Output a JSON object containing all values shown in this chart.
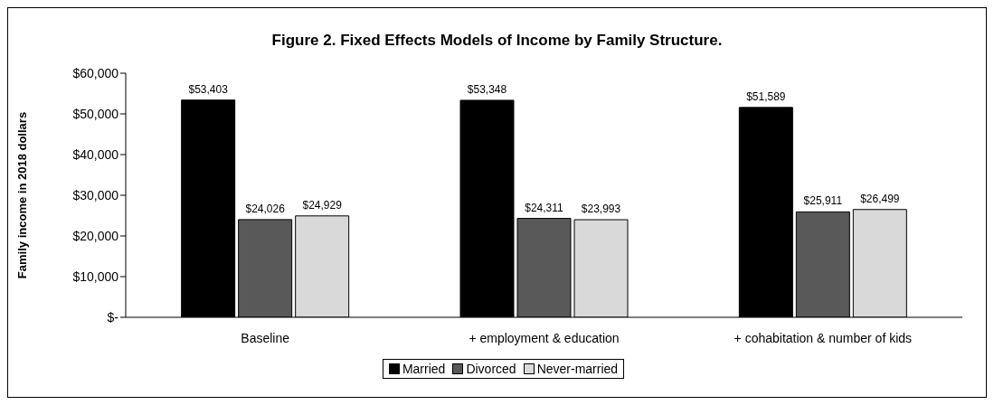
{
  "chart_data": {
    "type": "bar",
    "title": "Figure 2. Fixed Effects Models of Income by Family Structure.",
    "ylabel": "Family income in 2018 dollars",
    "categories": [
      "Baseline",
      "+ employment & education",
      "+ cohabitation & number of kids"
    ],
    "series": [
      {
        "name": "Married",
        "color": "#000000",
        "values": [
          53403,
          53348,
          51589
        ],
        "value_labels": [
          "$53,403",
          "$53,348",
          "$51,589"
        ]
      },
      {
        "name": "Divorced",
        "color": "#595959",
        "values": [
          24026,
          24311,
          25911
        ],
        "value_labels": [
          "$24,026",
          "$24,311",
          "$25,911"
        ]
      },
      {
        "name": "Never-married",
        "color": "#d9d9d9",
        "values": [
          24929,
          23993,
          26499
        ],
        "value_labels": [
          "$24,929",
          "$23,993",
          "$26,499"
        ]
      }
    ],
    "ylim": [
      0,
      60000
    ],
    "yticks": [
      {
        "value": 0,
        "label": "$-"
      },
      {
        "value": 10000,
        "label": "$10,000"
      },
      {
        "value": 20000,
        "label": "$20,000"
      },
      {
        "value": 30000,
        "label": "$30,000"
      },
      {
        "value": 40000,
        "label": "$40,000"
      },
      {
        "value": 50000,
        "label": "$50,000"
      },
      {
        "value": 60000,
        "label": "$60,000"
      }
    ],
    "grid": false,
    "legend": "bottom"
  }
}
